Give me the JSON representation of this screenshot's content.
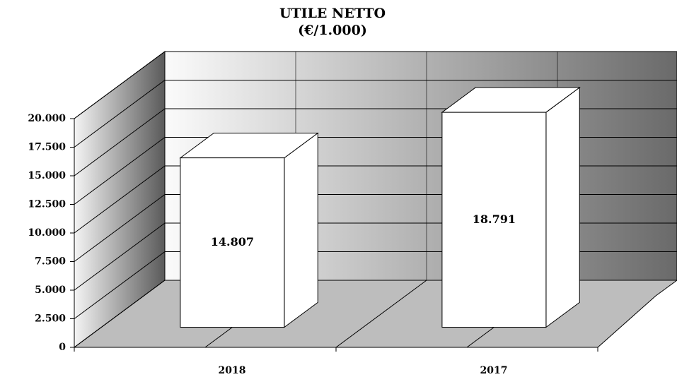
{
  "chart_data": {
    "type": "bar3d",
    "title": "UTILE NETTO",
    "subtitle": "(€/1.000)",
    "categories": [
      "2018",
      "2017"
    ],
    "values": [
      14807,
      18791
    ],
    "value_labels": [
      "14.807",
      "18.791"
    ],
    "color": "#ffffff",
    "ylim": [
      0,
      20000
    ],
    "yticks": [
      0,
      {
        "value": 2500,
        "label": "2.500"
      },
      {
        "value": 5000,
        "label": "5.000"
      },
      {
        "value": 7500,
        "label": "7.500"
      },
      {
        "value": 10000,
        "label": "10.000"
      },
      {
        "value": 12500,
        "label": "12.500"
      },
      {
        "value": 15000,
        "label": "15.000"
      },
      {
        "value": 17500,
        "label": "17.500"
      },
      {
        "value": 20000,
        "label": "20.000"
      }
    ],
    "grid": true
  }
}
